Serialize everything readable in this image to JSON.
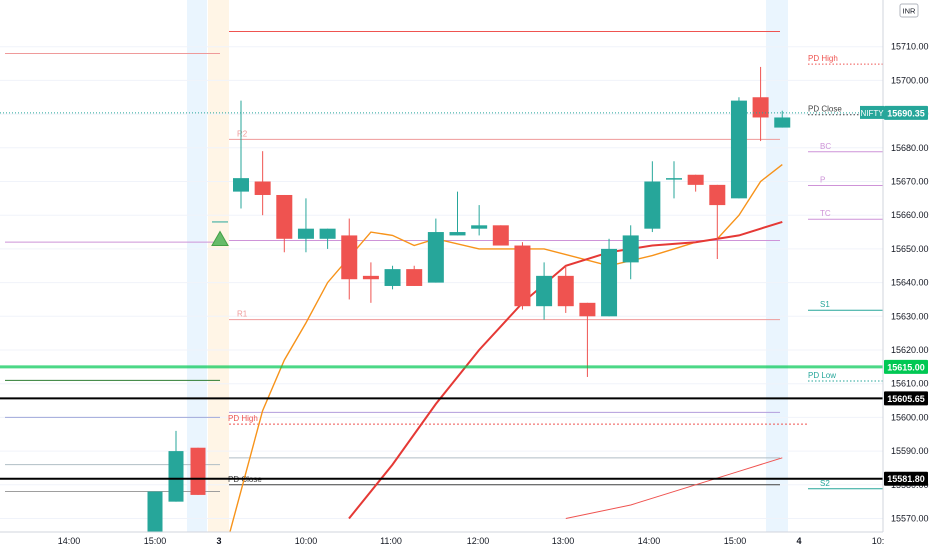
{
  "chart_data": {
    "type": "candlestick",
    "currency": "INR",
    "y_ticks": [
      15570,
      15580,
      15590,
      15600,
      15610,
      15620,
      15630,
      15640,
      15650,
      15660,
      15670,
      15680,
      15690,
      15700,
      15710
    ],
    "y_tick_labels": [
      "15570.00",
      "15580.00",
      "15590.00",
      "15600.00",
      "15610.00",
      "15620.00",
      "15630.00",
      "15640.00",
      "15650.00",
      "15660.00",
      "15670.00",
      "15680.00",
      "15690.00",
      "15700.00",
      "15710.00"
    ],
    "ylim": [
      15565,
      15718
    ],
    "x_tick_labels": [
      "14:00",
      "15:00",
      "3",
      "10:00",
      "11:00",
      "12:00",
      "13:00",
      "14:00",
      "15:00",
      "4",
      "10:"
    ],
    "price_labels": [
      {
        "name": "NIFTY",
        "value": 15690.35,
        "text": "15690.35",
        "color": "#26a69a"
      },
      {
        "name": "",
        "value": 15615.0,
        "text": "15615.00",
        "color": "#00c853"
      },
      {
        "name": "",
        "value": 15605.65,
        "text": "15605.65",
        "color": "#000000"
      },
      {
        "name": "",
        "value": 15581.8,
        "text": "15581.80",
        "color": "#000000"
      }
    ],
    "candles_day2": [
      {
        "o": 15566,
        "h": 15578,
        "l": 15566,
        "c": 15578
      },
      {
        "o": 15575,
        "h": 15596,
        "l": 15575,
        "c": 15590
      },
      {
        "o": 15591,
        "h": 15591,
        "l": 15577,
        "c": 15577
      }
    ],
    "candles_day3": [
      {
        "o": 15667,
        "h": 15694,
        "l": 15662,
        "c": 15671
      },
      {
        "o": 15670,
        "h": 15679,
        "l": 15660,
        "c": 15666
      },
      {
        "o": 15666,
        "h": 15666,
        "l": 15649,
        "c": 15653
      },
      {
        "o": 15653,
        "h": 15665,
        "l": 15649,
        "c": 15656
      },
      {
        "o": 15653,
        "h": 15656,
        "l": 15650,
        "c": 15656
      },
      {
        "o": 15654,
        "h": 15659,
        "l": 15635,
        "c": 15641
      },
      {
        "o": 15642,
        "h": 15646,
        "l": 15634,
        "c": 15641
      },
      {
        "o": 15639,
        "h": 15645,
        "l": 15638,
        "c": 15644
      },
      {
        "o": 15644,
        "h": 15645,
        "l": 15639,
        "c": 15639
      },
      {
        "o": 15640,
        "h": 15659,
        "l": 15640,
        "c": 15655
      },
      {
        "o": 15654,
        "h": 15667,
        "l": 15654,
        "c": 15655
      },
      {
        "o": 15656,
        "h": 15663,
        "l": 15654,
        "c": 15657
      },
      {
        "o": 15657,
        "h": 15657,
        "l": 15651,
        "c": 15651
      },
      {
        "o": 15651,
        "h": 15652,
        "l": 15632,
        "c": 15633
      },
      {
        "o": 15633,
        "h": 15646,
        "l": 15629,
        "c": 15642
      },
      {
        "o": 15642,
        "h": 15645,
        "l": 15631,
        "c": 15633
      },
      {
        "o": 15634,
        "h": 15634,
        "l": 15612,
        "c": 15630
      },
      {
        "o": 15630,
        "h": 15653,
        "l": 15630,
        "c": 15650
      },
      {
        "o": 15646,
        "h": 15657,
        "l": 15641,
        "c": 15654
      },
      {
        "o": 15656,
        "h": 15676,
        "l": 15655,
        "c": 15670
      },
      {
        "o": 15671,
        "h": 15676,
        "l": 15665,
        "c": 15671
      },
      {
        "o": 15672,
        "h": 15672,
        "l": 15667,
        "c": 15669
      },
      {
        "o": 15669,
        "h": 15669,
        "l": 15647,
        "c": 15663
      },
      {
        "o": 15665,
        "h": 15695,
        "l": 15665,
        "c": 15694
      },
      {
        "o": 15695,
        "h": 15704,
        "l": 15682,
        "c": 15689
      },
      {
        "o": 15686,
        "h": 15691,
        "l": 15686,
        "c": 15689
      }
    ],
    "ma_short": [
      [
        0,
        15565
      ],
      [
        1,
        15602
      ],
      [
        2,
        15617
      ],
      [
        3,
        15628
      ],
      [
        4,
        15640
      ],
      [
        6,
        15655
      ],
      [
        7,
        15654
      ],
      [
        8,
        15651
      ],
      [
        9,
        15653
      ],
      [
        11,
        15650
      ],
      [
        14,
        15650
      ],
      [
        17,
        15645
      ],
      [
        19,
        15648
      ],
      [
        20,
        15650
      ],
      [
        21,
        15652
      ],
      [
        22,
        15653
      ],
      [
        23,
        15660
      ],
      [
        24,
        15670
      ],
      [
        25,
        15675
      ]
    ],
    "ma_long": [
      [
        5,
        15570
      ],
      [
        7,
        15586
      ],
      [
        9,
        15604
      ],
      [
        11,
        15620
      ],
      [
        13,
        15634
      ],
      [
        15,
        15645
      ],
      [
        17,
        15649
      ],
      [
        19,
        15651
      ],
      [
        21,
        15652
      ],
      [
        23,
        15654
      ],
      [
        25,
        15658
      ]
    ],
    "ma_long_prev": [
      [
        15,
        15570
      ],
      [
        18,
        15574
      ],
      [
        21,
        15580
      ],
      [
        23,
        15584
      ],
      [
        25,
        15588
      ]
    ],
    "levels_day3": [
      {
        "label": "R2",
        "value": 15682.5,
        "color": "#ef9a9a"
      },
      {
        "label": "",
        "value": 15714.5,
        "color": "#ef5350"
      },
      {
        "label": "",
        "value": 15652.5,
        "color": "#ce93d8"
      },
      {
        "label": "R1",
        "value": 15629,
        "color": "#ef9a9a"
      },
      {
        "label": "",
        "value": 15601.5,
        "color": "#b39ddb"
      },
      {
        "label": "PD High",
        "value": 15598,
        "color": "#ef5350"
      },
      {
        "label": "",
        "value": 15588,
        "color": "#b0bec5"
      },
      {
        "label": "PD Close",
        "value": 15580,
        "color": "#424242"
      }
    ],
    "levels_right": [
      {
        "label": "PD High",
        "value": 15706,
        "color": "#ef5350"
      },
      {
        "label": "PD Close",
        "value": 15691,
        "color": "#424242"
      },
      {
        "label": "BC",
        "value": 15680,
        "color": "#ce93d8"
      },
      {
        "label": "P",
        "value": 15670,
        "color": "#ce93d8"
      },
      {
        "label": "TC",
        "value": 15660,
        "color": "#ce93d8"
      },
      {
        "label": "S1",
        "value": 15633,
        "color": "#26a69a"
      },
      {
        "label": "PD Low",
        "value": 15612,
        "color": "#26a69a"
      },
      {
        "label": "S2",
        "value": 15580,
        "color": "#26a69a"
      }
    ],
    "levels_day2": [
      {
        "value": 15708,
        "color": "#ef9a9a"
      },
      {
        "value": 15652,
        "color": "#ce93d8"
      },
      {
        "value": 15611,
        "color": "#2e7d32"
      },
      {
        "value": 15600,
        "color": "#9fa8da"
      },
      {
        "value": 15586,
        "color": "#b0bec5"
      },
      {
        "value": 15578,
        "color": "#9e9e9e"
      }
    ],
    "signal_up_value": 15651,
    "colors": {
      "up": "#26a69a",
      "down": "#ef5350",
      "ma_short": "#f7931a",
      "ma_long": "#e53935",
      "ma_long_prev": "#ef5350"
    }
  }
}
